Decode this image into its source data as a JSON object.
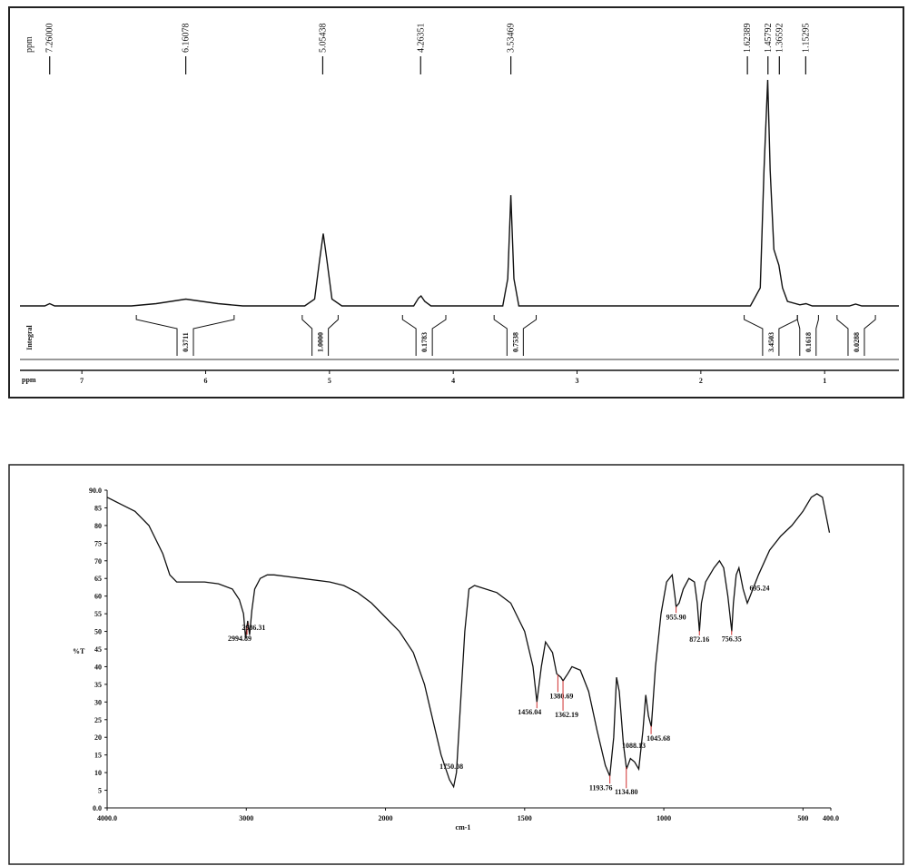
{
  "chart_data": [
    {
      "type": "line",
      "top_label": "ppm",
      "integral_label": "Integral",
      "x_label": "ppm",
      "xlim": [
        7.5,
        0.4
      ],
      "xticks": [
        7,
        6,
        5,
        4,
        3,
        2,
        1
      ],
      "ylim": [
        0,
        100
      ],
      "color": "#111111",
      "x": [
        7.5,
        7.3,
        7.26,
        7.22,
        6.6,
        6.4,
        6.16,
        5.9,
        5.7,
        5.2,
        5.12,
        5.08,
        5.05,
        5.02,
        4.98,
        4.9,
        4.32,
        4.28,
        4.26,
        4.23,
        4.18,
        3.6,
        3.56,
        3.535,
        3.51,
        3.47,
        1.6,
        1.52,
        1.49,
        1.46,
        1.44,
        1.41,
        1.37,
        1.34,
        1.3,
        1.2,
        1.15,
        1.1,
        0.8,
        0.75,
        0.7,
        0.4
      ],
      "y": [
        0,
        0,
        1,
        0,
        0,
        1,
        3,
        1,
        0,
        0,
        3,
        20,
        32,
        20,
        3,
        0,
        0,
        3.5,
        4.4,
        2,
        0,
        0,
        12,
        49,
        12,
        0,
        0,
        8,
        60,
        100,
        60,
        25,
        18,
        8,
        2,
        0.5,
        1,
        0,
        0,
        0.8,
        0,
        0
      ],
      "peak_labels": [
        {
          "x": 7.26,
          "label": "7.26000"
        },
        {
          "x": 6.16078,
          "label": "6.16078"
        },
        {
          "x": 5.05438,
          "label": "5.05438"
        },
        {
          "x": 4.26351,
          "label": "4.26351"
        },
        {
          "x": 3.53469,
          "label": "3.53469"
        },
        {
          "x": 1.62389,
          "label": "1.62389"
        },
        {
          "x": 1.45792,
          "label": "1.45792"
        },
        {
          "x": 1.36592,
          "label": "1.36592"
        },
        {
          "x": 1.15295,
          "label": "1.15295"
        }
      ],
      "integrals": {
        "ranges": [
          [
            6.56,
            5.77
          ],
          [
            5.22,
            4.93
          ],
          [
            4.41,
            4.06
          ],
          [
            3.67,
            3.33
          ],
          [
            1.65,
            1.22
          ],
          [
            1.22,
            1.05
          ],
          [
            0.9,
            0.59
          ]
        ],
        "values": [
          0.3711,
          1,
          0.1783,
          0.7538,
          3.4503,
          0.1618,
          0.0288
        ],
        "value_labels": [
          "0.3711",
          "1.0000",
          "0.1783",
          "0.7538",
          "3.4503",
          "0.1618",
          "0.0288"
        ]
      }
    },
    {
      "type": "line",
      "x_label": "cm-1",
      "y_label": "%T",
      "xlim": [
        4000,
        400
      ],
      "x_scale_change": {
        "at": 2000,
        "factor": 2
      },
      "xticks": [
        {
          "value": 4000,
          "label": "4000.0"
        },
        3000,
        2000,
        1500,
        1000,
        500,
        {
          "value": 400,
          "label": "400.0"
        }
      ],
      "ylim": [
        0,
        90
      ],
      "yticks": [
        {
          "value": 90,
          "label": "90.0"
        },
        85,
        80,
        75,
        70,
        65,
        60,
        55,
        50,
        45,
        40,
        35,
        30,
        25,
        20,
        15,
        10,
        5,
        {
          "value": 0,
          "label": "0.0"
        }
      ],
      "color": "#111111",
      "peak_color": "#d03030",
      "x": [
        4000,
        3900,
        3800,
        3700,
        3600,
        3550,
        3500,
        3400,
        3300,
        3200,
        3100,
        3050,
        3020,
        3005,
        2990,
        2976,
        2960,
        2940,
        2900,
        2850,
        2800,
        2600,
        2400,
        2300,
        2200,
        2100,
        2000,
        1950,
        1900,
        1860,
        1830,
        1800,
        1770,
        1755,
        1745,
        1730,
        1715,
        1700,
        1680,
        1600,
        1550,
        1500,
        1470,
        1456,
        1440,
        1425,
        1400,
        1385,
        1370,
        1362,
        1345,
        1330,
        1300,
        1270,
        1240,
        1210,
        1194,
        1180,
        1170,
        1160,
        1145,
        1134,
        1120,
        1105,
        1090,
        1075,
        1065,
        1055,
        1045,
        1030,
        1010,
        990,
        970,
        960,
        956,
        945,
        930,
        910,
        890,
        880,
        872,
        865,
        850,
        820,
        800,
        785,
        770,
        756,
        750,
        740,
        730,
        715,
        700,
        695,
        680,
        660,
        620,
        580,
        540,
        500,
        470,
        450,
        430,
        415,
        405
      ],
      "y": [
        88,
        86,
        84,
        80,
        72,
        66,
        64,
        64,
        64,
        63.5,
        62,
        59,
        55,
        48,
        53,
        49,
        56,
        62,
        65,
        66,
        66,
        65,
        64,
        63,
        61,
        58,
        54,
        50,
        44,
        35,
        25,
        15,
        8,
        6,
        10,
        30,
        50,
        62,
        63,
        61,
        58,
        50,
        40,
        30,
        40,
        47,
        44,
        38,
        37,
        36,
        38,
        40,
        39,
        33,
        22,
        12,
        9,
        20,
        37,
        33,
        18,
        11,
        14,
        13,
        11,
        22,
        32,
        26,
        23,
        40,
        55,
        64,
        66,
        60,
        57,
        58,
        62,
        65,
        64,
        58,
        50,
        58,
        64,
        68,
        70,
        68,
        60,
        50,
        58,
        66,
        68,
        62,
        58,
        59,
        62,
        66,
        73,
        77,
        80,
        84,
        88,
        89,
        88,
        82,
        78
      ],
      "peaks": [
        {
          "x": 2994.89,
          "label": "2994.89"
        },
        {
          "x": 2986.31,
          "label": "2986.31"
        },
        {
          "x": 1750.08,
          "label": "1750.08"
        },
        {
          "x": 1456.04,
          "label": "1456.04"
        },
        {
          "x": 1380.69,
          "label": "1380.69"
        },
        {
          "x": 1362.19,
          "label": "1362.19"
        },
        {
          "x": 1193.76,
          "label": "1193.76"
        },
        {
          "x": 1134.8,
          "label": "1134.80"
        },
        {
          "x": 1088.13,
          "label": "1088.13"
        },
        {
          "x": 1045.68,
          "label": "1045.68"
        },
        {
          "x": 955.9,
          "label": "955.90"
        },
        {
          "x": 872.16,
          "label": "872.16"
        },
        {
          "x": 756.35,
          "label": "756.35"
        },
        {
          "x": 695.24,
          "label": "695.24"
        }
      ]
    }
  ]
}
